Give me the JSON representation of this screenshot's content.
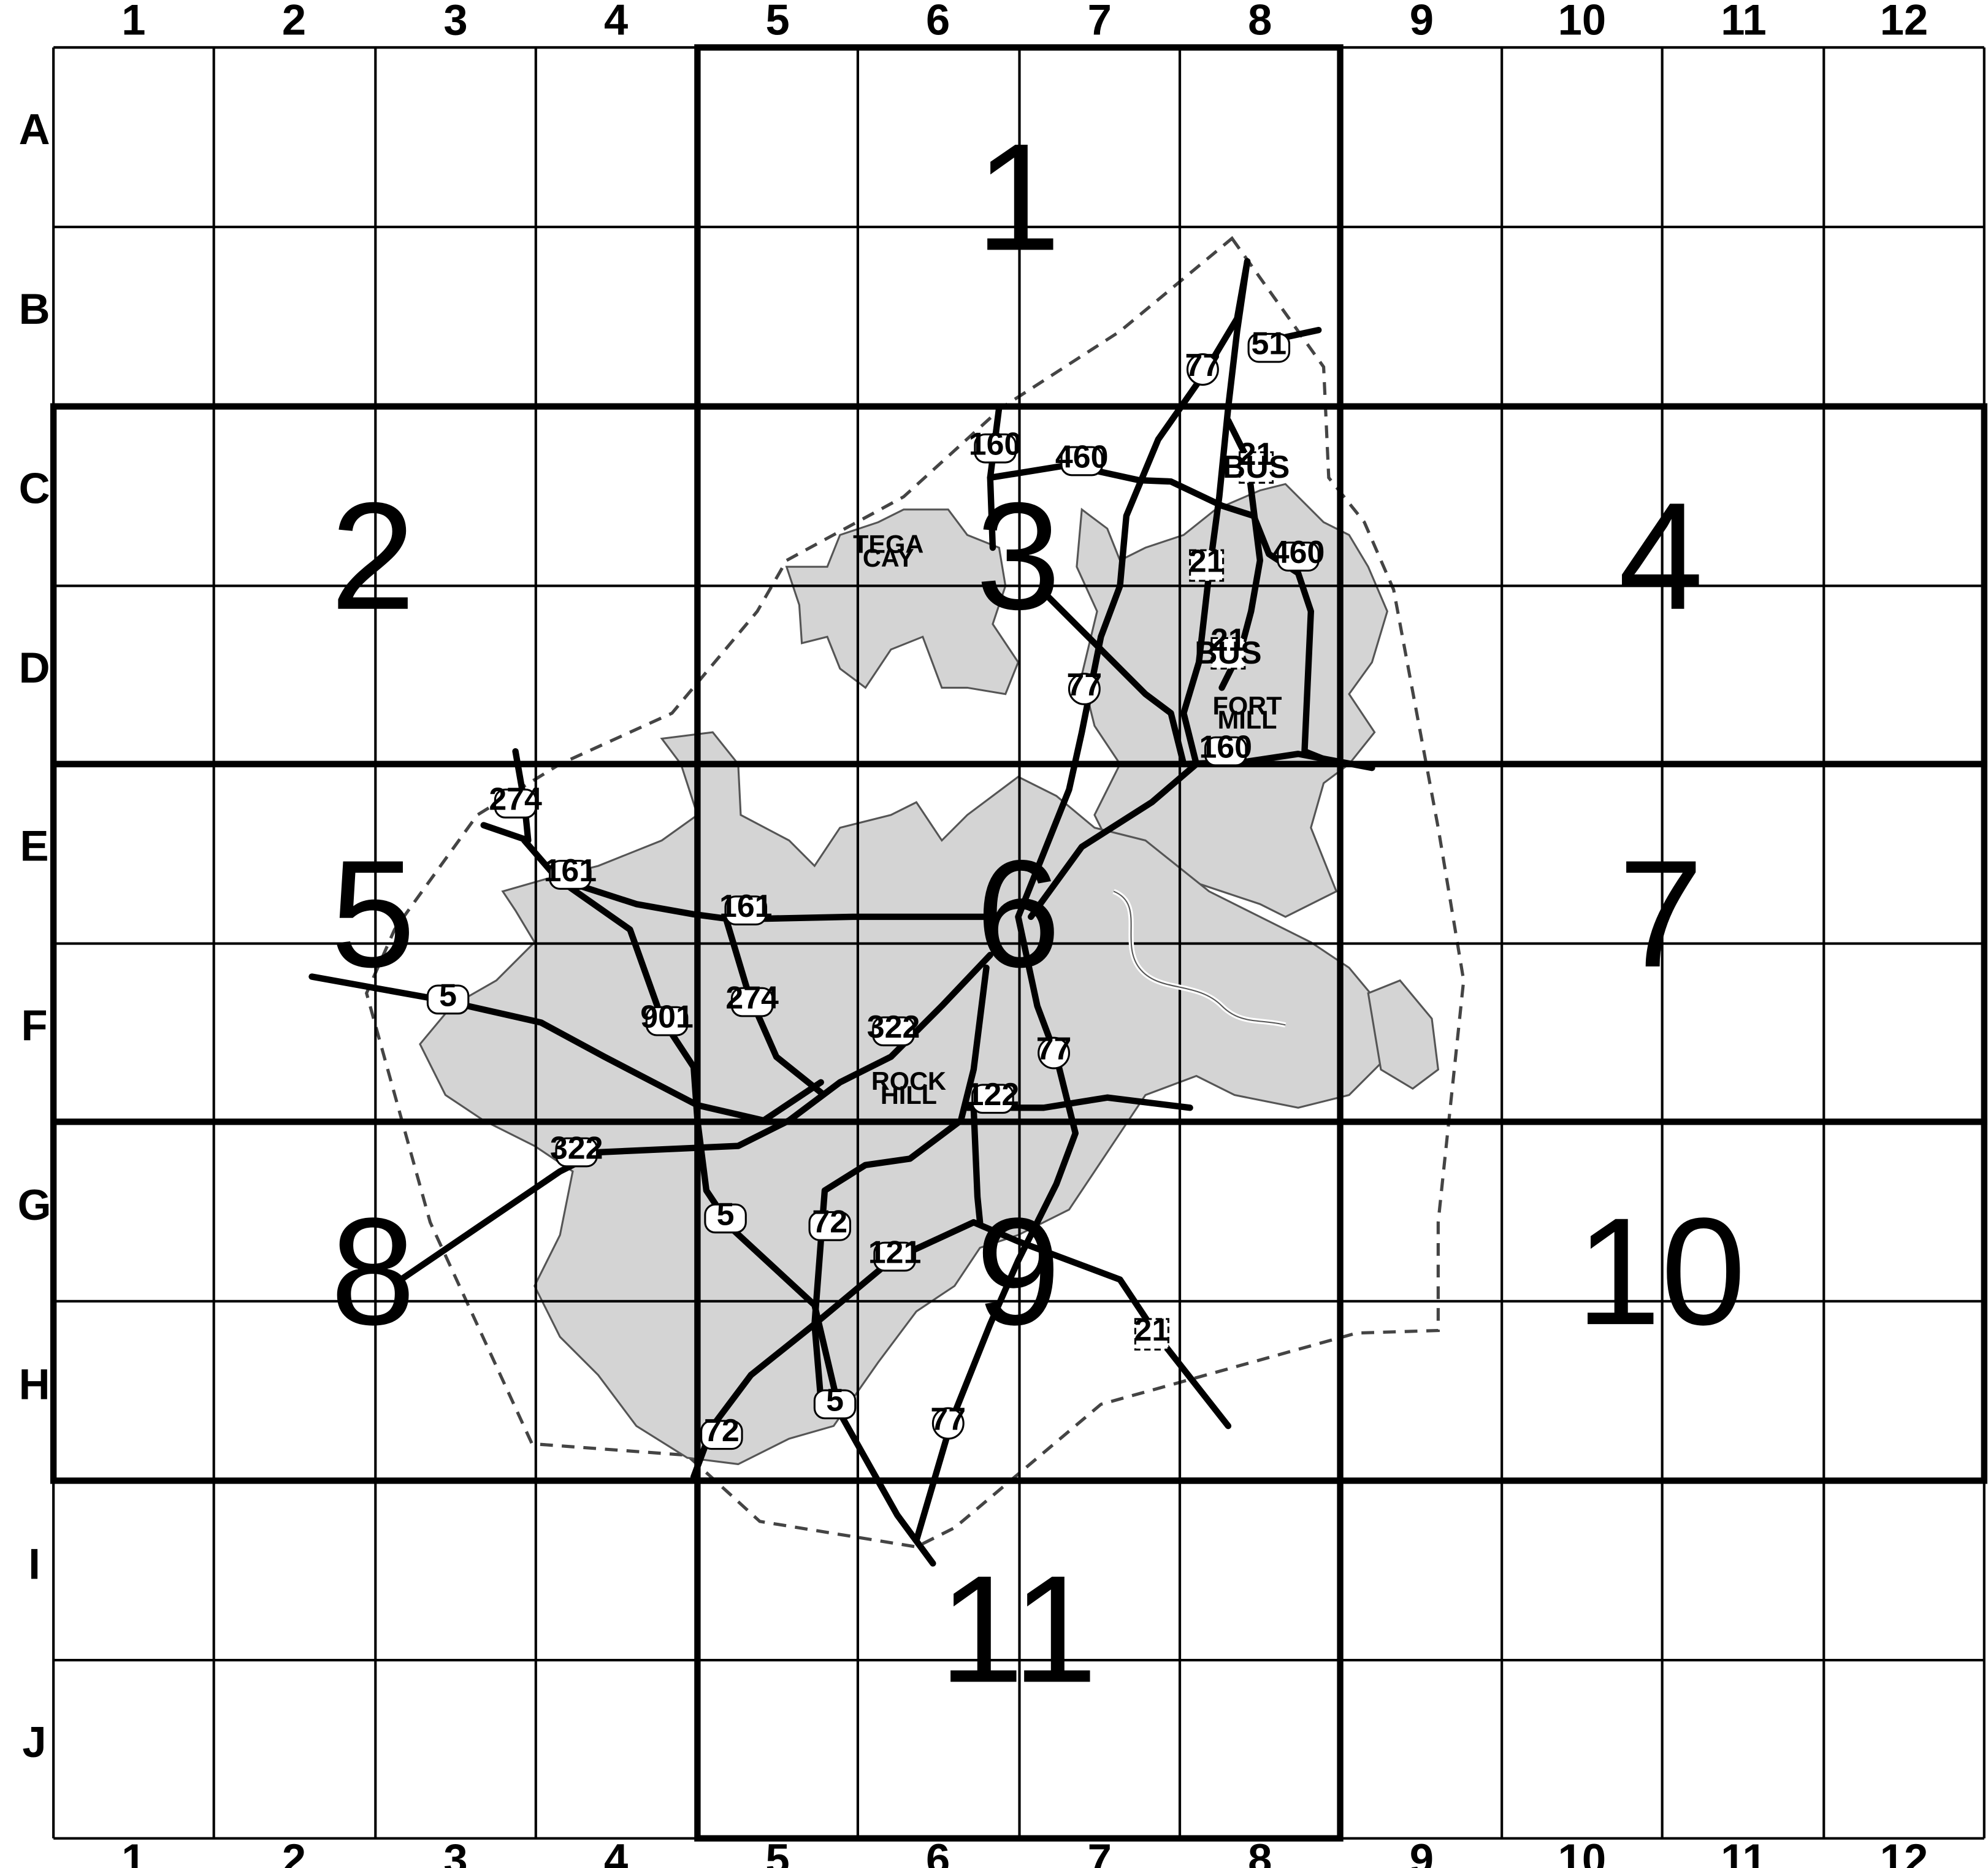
{
  "grid": {
    "columns": [
      "1",
      "2",
      "3",
      "4",
      "5",
      "6",
      "7",
      "8",
      "9",
      "10",
      "11",
      "12"
    ],
    "rows": [
      "A",
      "B",
      "C",
      "D",
      "E",
      "F",
      "G",
      "H",
      "I",
      "J"
    ]
  },
  "pages": [
    "1",
    "2",
    "3",
    "4",
    "5",
    "6",
    "7",
    "8",
    "9",
    "10",
    "11"
  ],
  "places": [
    {
      "name": "tega-cay",
      "lines": [
        "TEGA",
        "CAY"
      ]
    },
    {
      "name": "fort-mill",
      "lines": [
        "FORT",
        "MILL"
      ]
    },
    {
      "name": "rock-hill",
      "lines": [
        "ROCK",
        "HILL"
      ]
    }
  ],
  "route_shields": [
    {
      "name": "route-77-b",
      "label": "77",
      "type": "interstate"
    },
    {
      "name": "route-51-b",
      "label": "51",
      "type": "state"
    },
    {
      "name": "route-160-c",
      "label": "160",
      "type": "state"
    },
    {
      "name": "route-460-c",
      "label": "460",
      "type": "state"
    },
    {
      "name": "route-21bus-c",
      "label": "21 BUS",
      "type": "us"
    },
    {
      "name": "route-21-c",
      "label": "21",
      "type": "us"
    },
    {
      "name": "route-460-d",
      "label": "460",
      "type": "state"
    },
    {
      "name": "route-21bus-d",
      "label": "21 BUS",
      "type": "us"
    },
    {
      "name": "route-77-d",
      "label": "77",
      "type": "interstate"
    },
    {
      "name": "route-160-d",
      "label": "160",
      "type": "state"
    },
    {
      "name": "route-274-e",
      "label": "274",
      "type": "state"
    },
    {
      "name": "route-161-e3",
      "label": "161",
      "type": "state"
    },
    {
      "name": "route-161-e5",
      "label": "161",
      "type": "state"
    },
    {
      "name": "route-5-f",
      "label": "5",
      "type": "state"
    },
    {
      "name": "route-901-f",
      "label": "901",
      "type": "state"
    },
    {
      "name": "route-274-f",
      "label": "274",
      "type": "state"
    },
    {
      "name": "route-322-f",
      "label": "322",
      "type": "state"
    },
    {
      "name": "route-77-f",
      "label": "77",
      "type": "interstate"
    },
    {
      "name": "route-122-f",
      "label": "122",
      "type": "state"
    },
    {
      "name": "route-322-g",
      "label": "322",
      "type": "state"
    },
    {
      "name": "route-5-g",
      "label": "5",
      "type": "state"
    },
    {
      "name": "route-72-g",
      "label": "72",
      "type": "state"
    },
    {
      "name": "route-121-g",
      "label": "121",
      "type": "state"
    },
    {
      "name": "route-21-h",
      "label": "21",
      "type": "us"
    },
    {
      "name": "route-5-h",
      "label": "5",
      "type": "state"
    },
    {
      "name": "route-77-h",
      "label": "77",
      "type": "interstate"
    },
    {
      "name": "route-72-h",
      "label": "72",
      "type": "state"
    }
  ],
  "colors": {
    "urban_fill": "#d4d4d4",
    "lines": "#000000",
    "background": "#ffffff"
  }
}
